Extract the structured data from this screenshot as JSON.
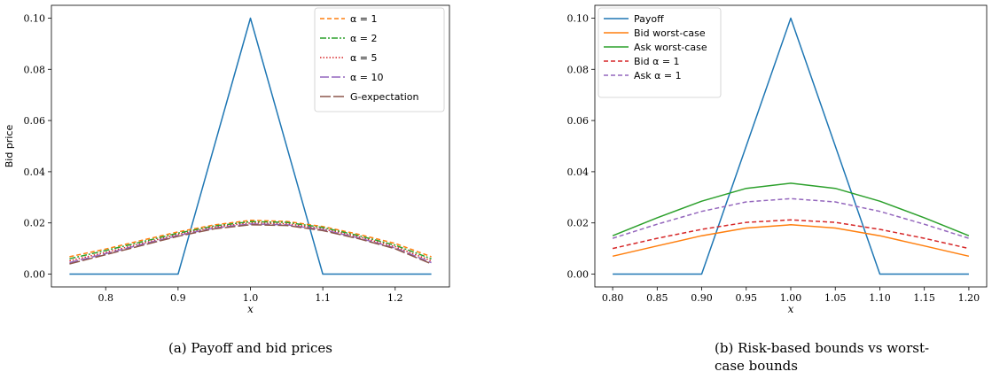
{
  "chart_data": [
    {
      "id": "a",
      "type": "line",
      "caption": "(a) Payoff and bid prices",
      "xlabel": "x",
      "ylabel": "Bid price",
      "xlim": [
        0.725,
        1.275
      ],
      "ylim": [
        -0.005,
        0.105
      ],
      "xticks": [
        0.8,
        0.9,
        1.0,
        1.1,
        1.2
      ],
      "xtick_labels": [
        "0.8",
        "0.9",
        "1.0",
        "1.1",
        "1.2"
      ],
      "yticks": [
        0.0,
        0.02,
        0.04,
        0.06,
        0.08,
        0.1
      ],
      "ytick_labels": [
        "0.00",
        "0.02",
        "0.04",
        "0.06",
        "0.08",
        "0.10"
      ],
      "legend_position": "top-right",
      "series": [
        {
          "legend": false,
          "color": "#1f77b4",
          "dash": "",
          "x": [
            0.75,
            0.9,
            1.0,
            1.1,
            1.25
          ],
          "y": [
            0.0,
            0.0,
            0.1,
            0.0,
            0.0
          ]
        },
        {
          "name": "α = 1",
          "color": "#ff7f0e",
          "dash": "5,3",
          "x": [
            0.75,
            0.8,
            0.85,
            0.9,
            0.95,
            1.0,
            1.05,
            1.1,
            1.15,
            1.2,
            1.25
          ],
          "y": [
            0.0068,
            0.0098,
            0.0132,
            0.0165,
            0.0192,
            0.021,
            0.0206,
            0.0186,
            0.0155,
            0.012,
            0.0068
          ]
        },
        {
          "name": "α = 2",
          "color": "#2ca02c",
          "dash": "7,2,2,2",
          "x": [
            0.75,
            0.8,
            0.85,
            0.9,
            0.95,
            1.0,
            1.05,
            1.1,
            1.15,
            1.2,
            1.25
          ],
          "y": [
            0.006,
            0.0092,
            0.0126,
            0.016,
            0.0188,
            0.0205,
            0.0202,
            0.0182,
            0.015,
            0.0113,
            0.006
          ]
        },
        {
          "name": "α = 5",
          "color": "#d62728",
          "dash": "1.5,2",
          "x": [
            0.75,
            0.8,
            0.85,
            0.9,
            0.95,
            1.0,
            1.05,
            1.1,
            1.15,
            1.2,
            1.25
          ],
          "y": [
            0.0052,
            0.0085,
            0.012,
            0.0155,
            0.0184,
            0.02,
            0.0197,
            0.0177,
            0.0145,
            0.0107,
            0.0052
          ]
        },
        {
          "name": "α = 10",
          "color": "#9467bd",
          "dash": "10,3",
          "x": [
            0.75,
            0.8,
            0.85,
            0.9,
            0.95,
            1.0,
            1.05,
            1.1,
            1.15,
            1.2,
            1.25
          ],
          "y": [
            0.0045,
            0.008,
            0.0116,
            0.0151,
            0.018,
            0.0196,
            0.0193,
            0.0173,
            0.0141,
            0.0102,
            0.0045
          ]
        },
        {
          "name": "G-expectation",
          "color": "#8c564b",
          "dash": "12,3",
          "x": [
            0.75,
            0.8,
            0.85,
            0.9,
            0.95,
            1.0,
            1.05,
            1.1,
            1.15,
            1.2,
            1.25
          ],
          "y": [
            0.004,
            0.0076,
            0.0112,
            0.0148,
            0.0177,
            0.0193,
            0.019,
            0.017,
            0.0138,
            0.0099,
            0.004
          ]
        }
      ]
    },
    {
      "id": "b",
      "type": "line",
      "caption_lines": [
        "(b) Risk-based bounds vs worst-",
        "case bounds"
      ],
      "xlabel": "x",
      "ylabel": "",
      "xlim": [
        0.78,
        1.22
      ],
      "ylim": [
        -0.005,
        0.105
      ],
      "xticks": [
        0.8,
        0.85,
        0.9,
        0.95,
        1.0,
        1.05,
        1.1,
        1.15,
        1.2
      ],
      "xtick_labels": [
        "0.80",
        "0.85",
        "0.90",
        "0.95",
        "1.00",
        "1.05",
        "1.10",
        "1.15",
        "1.20"
      ],
      "yticks": [
        0.0,
        0.02,
        0.04,
        0.06,
        0.08,
        0.1
      ],
      "ytick_labels": [
        "0.00",
        "0.02",
        "0.04",
        "0.06",
        "0.08",
        "0.10"
      ],
      "legend_position": "top-left",
      "series": [
        {
          "name": "Payoff",
          "color": "#1f77b4",
          "dash": "",
          "x": [
            0.8,
            0.9,
            1.0,
            1.1,
            1.2
          ],
          "y": [
            0.0,
            0.0,
            0.1,
            0.0,
            0.0
          ]
        },
        {
          "name": "Bid worst-case",
          "color": "#ff7f0e",
          "dash": "",
          "x": [
            0.8,
            0.85,
            0.9,
            0.95,
            1.0,
            1.05,
            1.1,
            1.15,
            1.2
          ],
          "y": [
            0.007,
            0.011,
            0.015,
            0.018,
            0.0193,
            0.018,
            0.015,
            0.011,
            0.007
          ]
        },
        {
          "name": "Ask worst-case",
          "color": "#2ca02c",
          "dash": "",
          "x": [
            0.8,
            0.85,
            0.9,
            0.95,
            1.0,
            1.05,
            1.1,
            1.15,
            1.2
          ],
          "y": [
            0.015,
            0.022,
            0.0285,
            0.0335,
            0.0355,
            0.0335,
            0.0285,
            0.022,
            0.015
          ]
        },
        {
          "name": "Bid α = 1",
          "color": "#d62728",
          "dash": "5,3",
          "x": [
            0.8,
            0.85,
            0.9,
            0.95,
            1.0,
            1.05,
            1.1,
            1.15,
            1.2
          ],
          "y": [
            0.01,
            0.014,
            0.0175,
            0.0202,
            0.0212,
            0.0202,
            0.0175,
            0.014,
            0.01
          ]
        },
        {
          "name": "Ask α = 1",
          "color": "#9467bd",
          "dash": "5,3",
          "x": [
            0.8,
            0.85,
            0.9,
            0.95,
            1.0,
            1.05,
            1.1,
            1.15,
            1.2
          ],
          "y": [
            0.014,
            0.0195,
            0.0245,
            0.0282,
            0.0295,
            0.0282,
            0.0245,
            0.0195,
            0.014
          ]
        }
      ]
    }
  ]
}
